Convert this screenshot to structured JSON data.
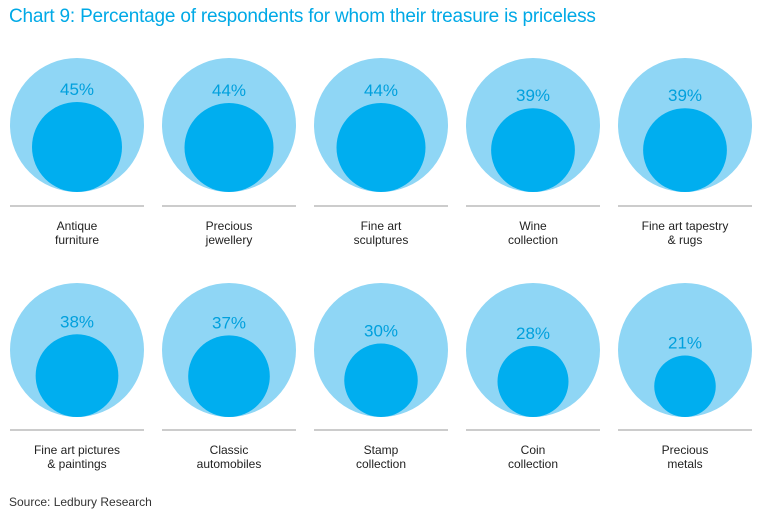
{
  "title": "Chart 9: Percentage of respondents for whom their treasure is priceless",
  "source": "Source: Ledbury Research",
  "colors": {
    "outer": "#8fd6f5",
    "inner": "#00aeef",
    "text": "#00a0dd",
    "divider": "#9a9a9a",
    "title": "#00a9e6"
  },
  "chart_data": {
    "type": "bubble",
    "title": "Chart 9: Percentage of respondents for whom their treasure is priceless",
    "unit": "%",
    "items": [
      {
        "label": [
          "Antique",
          "furniture"
        ],
        "value": 45,
        "display": "45%"
      },
      {
        "label": [
          "Precious",
          "jewellery"
        ],
        "value": 44,
        "display": "44%"
      },
      {
        "label": [
          "Fine art",
          "sculptures"
        ],
        "value": 44,
        "display": "44%"
      },
      {
        "label": [
          "Wine",
          "collection"
        ],
        "value": 39,
        "display": "39%"
      },
      {
        "label": [
          "Fine art tapestry",
          "& rugs"
        ],
        "value": 39,
        "display": "39%"
      },
      {
        "label": [
          "Fine art pictures",
          "& paintings"
        ],
        "value": 38,
        "display": "38%"
      },
      {
        "label": [
          "Classic",
          "automobiles"
        ],
        "value": 37,
        "display": "37%"
      },
      {
        "label": [
          "Stamp",
          "collection"
        ],
        "value": 30,
        "display": "30%"
      },
      {
        "label": [
          "Coin",
          "collection"
        ],
        "value": 28,
        "display": "28%"
      },
      {
        "label": [
          "Precious",
          "metals"
        ],
        "value": 21,
        "display": "21%"
      }
    ]
  }
}
